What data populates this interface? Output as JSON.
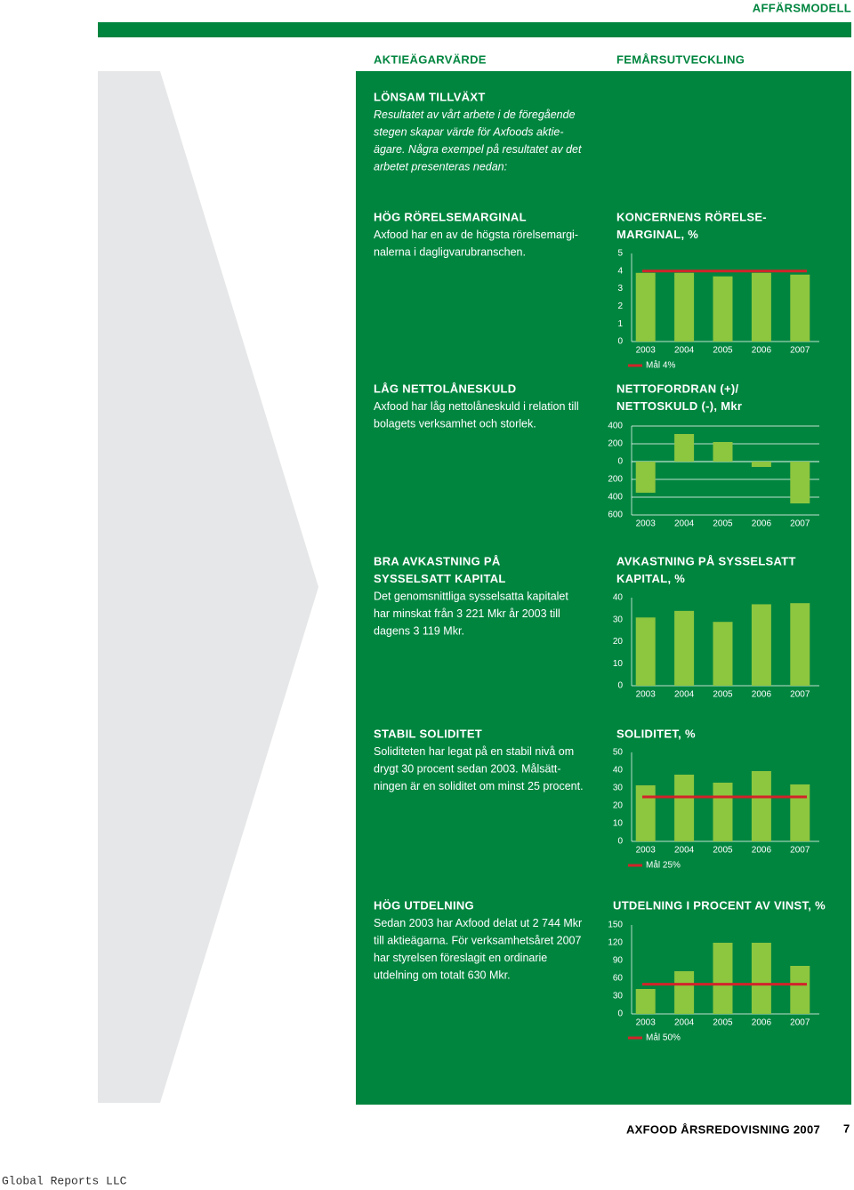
{
  "header": {
    "section": "AFFÄRSMODELL",
    "left_heading": "AKTIEÄGARVÄRDE",
    "right_heading": "FEMÅRSUTVECKLING"
  },
  "sections": [
    {
      "title": [
        "LÖNSAM TILLVÄXT"
      ],
      "lines": [
        "Resultatet av vårt arbete i de föregående",
        "stegen skapar värde för Axfoods aktie-",
        "ägare. Några exempel på resultatet av det",
        "arbetet presenteras nedan:"
      ]
    },
    {
      "title": [
        "HÖG RÖRELSEMARGINAL"
      ],
      "lines": [
        "Axfood har en av de högsta rörelsemargi-",
        "nalerna i dagligvarubranschen."
      ]
    },
    {
      "title": [
        "LÅG NETTOLÅNESKULD"
      ],
      "lines": [
        "Axfood har låg nettolåneskuld i relation till",
        "bolagets verksamhet och storlek."
      ]
    },
    {
      "title": [
        "BRA AVKASTNING PÅ",
        "SYSSELSATT KAPITAL"
      ],
      "lines": [
        "Det genomsnittliga sysselsatta kapitalet",
        "har minskat från 3 221 Mkr år 2003 till",
        "dagens 3 119 Mkr."
      ]
    },
    {
      "title": [
        "STABIL SOLIDITET"
      ],
      "lines": [
        "Soliditeten har legat på en stabil nivå om",
        "drygt 30 procent sedan 2003. Målsätt-",
        "ningen är en soliditet om minst 25 procent."
      ]
    },
    {
      "title": [
        "HÖG UTDELNING"
      ],
      "lines": [
        "Sedan 2003 har Axfood delat ut 2 744 Mkr",
        "till aktieägarna. För verksamhetsåret 2007",
        "har styrelsen föreslagit en ordinarie",
        "utdelning om totalt 630 Mkr."
      ]
    }
  ],
  "chart_data": [
    {
      "type": "bar",
      "title": [
        "KONCERNENS RÖRELSE-",
        "MARGINAL, %"
      ],
      "categories": [
        "2003",
        "2004",
        "2005",
        "2006",
        "2007"
      ],
      "values": [
        3.9,
        3.9,
        3.7,
        3.9,
        3.8
      ],
      "color": "#8dc63f",
      "ylim": [
        0,
        5
      ],
      "yticks": [
        0,
        1,
        2,
        3,
        4,
        5
      ],
      "grid": false,
      "target": 4,
      "target_label": "Mål 4%",
      "target_color": "#d2232a"
    },
    {
      "type": "bar",
      "title": [
        "NETTOFORDRAN (+)/",
        "NETTOSKULD (-), Mkr"
      ],
      "categories": [
        "2003",
        "2004",
        "2005",
        "2006",
        "2007"
      ],
      "values": [
        -350,
        310,
        220,
        -60,
        -470
      ],
      "color": "#8dc63f",
      "ylim": [
        -600,
        400
      ],
      "yticks": [
        400,
        200,
        0,
        {
          "value": -200,
          "label": "200"
        },
        {
          "value": -400,
          "label": "400"
        },
        {
          "value": -600,
          "label": "600"
        }
      ],
      "grid": true
    },
    {
      "type": "bar",
      "title": [
        "AVKASTNING PÅ SYSSELSATT",
        "KAPITAL, %"
      ],
      "categories": [
        "2003",
        "2004",
        "2005",
        "2006",
        "2007"
      ],
      "values": [
        31,
        34,
        29,
        37,
        37.5
      ],
      "color": "#8dc63f",
      "ylim": [
        0,
        40
      ],
      "yticks": [
        0,
        10,
        20,
        30,
        40
      ],
      "grid": false
    },
    {
      "type": "bar",
      "title": [
        "SOLIDITET, %"
      ],
      "categories": [
        "2003",
        "2004",
        "2005",
        "2006",
        "2007"
      ],
      "values": [
        31.5,
        37.5,
        33,
        39.5,
        32
      ],
      "color": "#8dc63f",
      "ylim": [
        0,
        50
      ],
      "yticks": [
        0,
        10,
        20,
        30,
        40,
        50
      ],
      "grid": false,
      "target": 25,
      "target_label": "Mål 25%",
      "target_color": "#d2232a"
    },
    {
      "type": "bar",
      "title": [
        "UTDELNING I PROCENT AV VINST, %"
      ],
      "categories": [
        "2003",
        "2004",
        "2005",
        "2006",
        "2007"
      ],
      "values": [
        42,
        72,
        120,
        120,
        81
      ],
      "color": "#8dc63f",
      "ylim": [
        0,
        150
      ],
      "yticks": [
        0,
        30,
        60,
        90,
        120,
        150
      ],
      "grid": false,
      "target": 50,
      "target_label": "Mål 50%",
      "target_color": "#d2232a"
    }
  ],
  "footer": {
    "publication": "AXFOOD ÅRSREDOVISNING 2007",
    "page": "7",
    "watermark": "Global Reports LLC"
  }
}
